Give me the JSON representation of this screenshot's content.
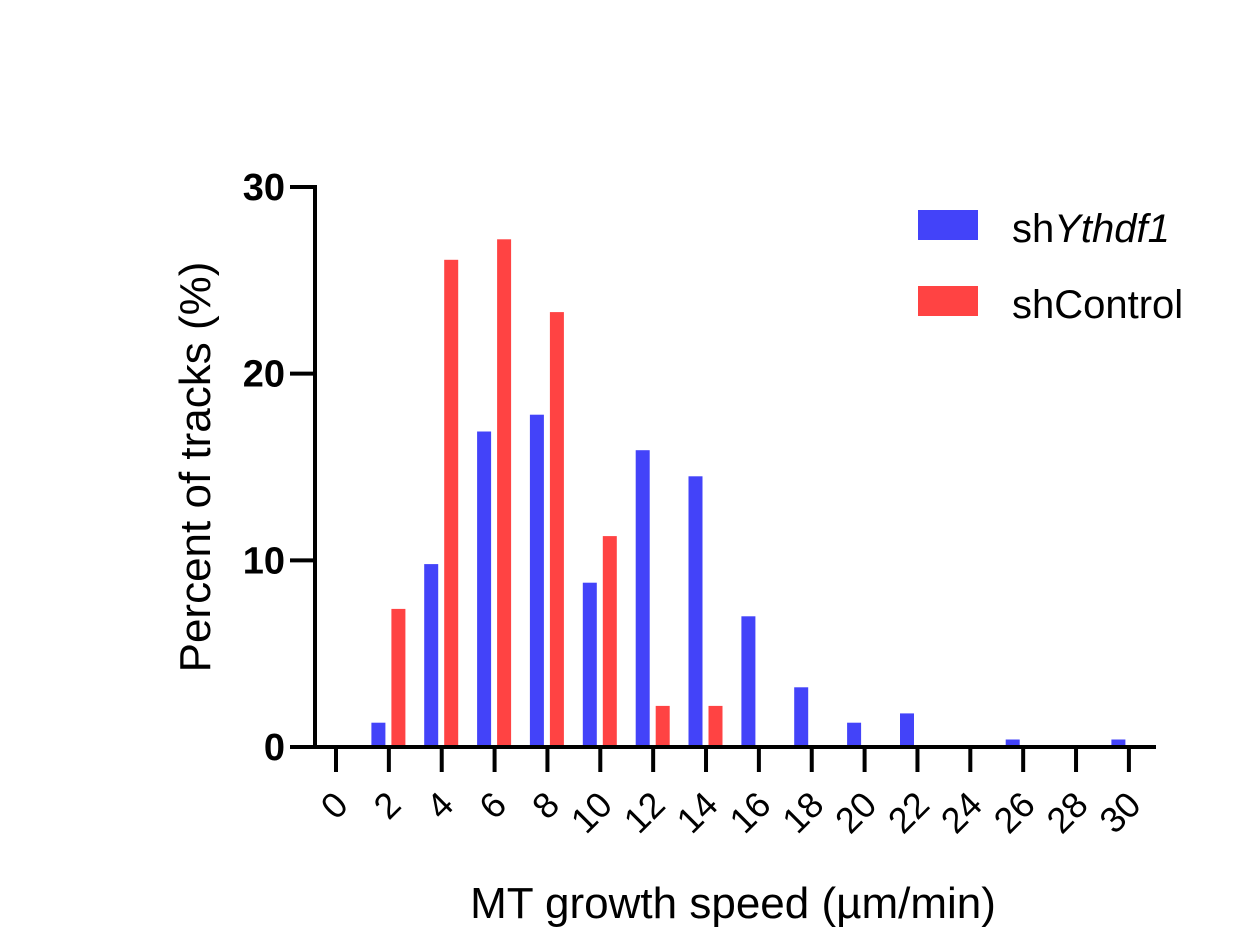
{
  "chart_data": {
    "type": "bar",
    "title": "",
    "xlabel": "MT growth speed (µm/min)",
    "ylabel": "Percent of tracks (%)",
    "ylim": [
      0,
      30
    ],
    "yticks": [
      "0",
      "10",
      "20",
      "30"
    ],
    "xlim": [
      -0.8,
      31.2
    ],
    "xticks": [
      "0",
      "2",
      "4",
      "6",
      "8",
      "10",
      "12",
      "14",
      "16",
      "18",
      "20",
      "22",
      "24",
      "26",
      "28",
      "30"
    ],
    "legend_position": "top-right",
    "series": [
      {
        "name_prefix": "sh",
        "name_gene": "Ythdf1",
        "color": "#4343F9",
        "x": [
          2,
          4,
          6,
          8,
          10,
          12,
          14,
          16,
          18,
          20,
          22,
          24,
          26,
          28,
          30
        ],
        "values": [
          1.3,
          9.8,
          16.9,
          17.8,
          8.8,
          15.9,
          14.5,
          7.0,
          3.2,
          1.3,
          1.8,
          0,
          0.4,
          0,
          0.4
        ]
      },
      {
        "name": "shControl",
        "color": "#FF4343",
        "x": [
          2,
          4,
          6,
          8,
          10,
          12,
          14,
          16,
          18,
          20,
          22,
          24,
          26,
          28,
          30
        ],
        "values": [
          7.4,
          26.1,
          27.2,
          23.3,
          11.3,
          2.2,
          2.2,
          0,
          0,
          0,
          0,
          0,
          0,
          0,
          0
        ]
      }
    ]
  }
}
